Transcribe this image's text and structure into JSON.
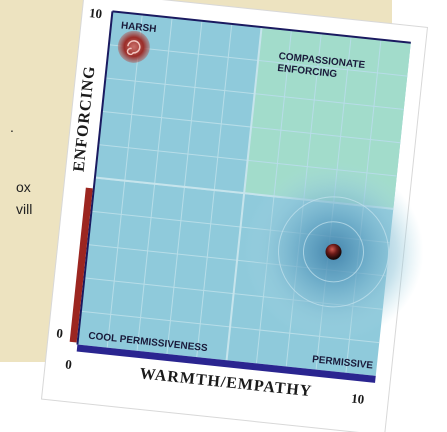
{
  "fragments": [
    ".",
    "ox",
    "vill"
  ],
  "chart": {
    "y_max": "10",
    "y_min": "0",
    "x_min": "0",
    "x_max": "10",
    "y_title": "ENFORCING",
    "x_title": "WARMTH/EMPATHY",
    "quadrants": {
      "harsh": "HARSH",
      "compassionate_1": "COMPASSIONATE",
      "compassionate_2": "ENFORCING",
      "cool": "COOL PERMISSIVENESS",
      "permissive": "PERMISSIVE"
    }
  }
}
